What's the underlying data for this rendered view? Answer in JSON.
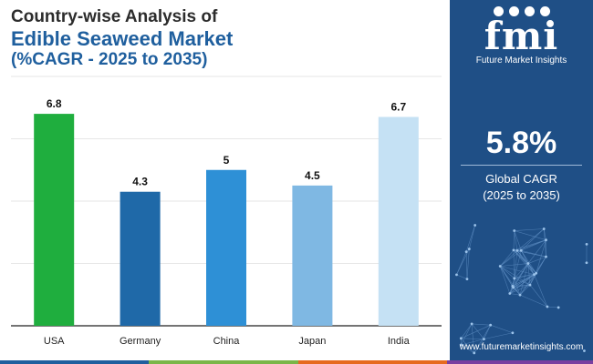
{
  "header": {
    "line1": "Country-wise Analysis of",
    "line2": "Edible Seaweed Market",
    "line3": "(%CAGR - 2025 to 2035)"
  },
  "chart_data": {
    "type": "bar",
    "categories": [
      "USA",
      "Germany",
      "China",
      "Japan",
      "India"
    ],
    "values": [
      6.8,
      4.3,
      5,
      4.5,
      6.7
    ],
    "value_labels": [
      "6.8",
      "4.3",
      "5",
      "4.5",
      "6.7"
    ],
    "bar_colors": [
      "#1fae3e",
      "#1f69a8",
      "#2e90d6",
      "#7fb8e3",
      "#c5e1f4"
    ],
    "ylim": [
      0,
      8
    ],
    "grid": true
  },
  "panel": {
    "logo_text": "fmi",
    "logo_caption": "Future Market Insights",
    "cagr_value": "5.8%",
    "cagr_label_line1": "Global CAGR",
    "cagr_label_line2": "(2025 to 2035)",
    "website": "www.futuremarketinsights.com"
  },
  "colors": {
    "panel_bg": "#1f4f86",
    "title_blue": "#1f5f9e",
    "strip": [
      "#1f5f9e",
      "#7ab648",
      "#e66a1f",
      "#7a3fa0"
    ]
  }
}
